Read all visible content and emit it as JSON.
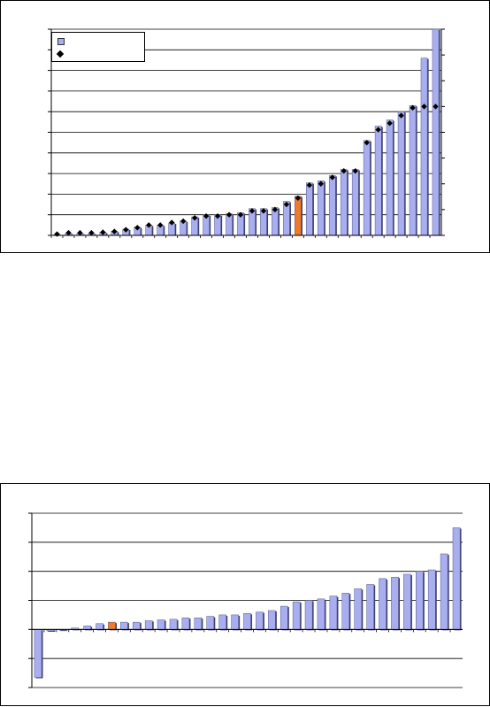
{
  "colors": {
    "bar": "#a9aef0",
    "bar_stroke": "#555a8a",
    "bar_shadow": "#3c3f66",
    "highlight": "#f07a2a",
    "marker": "#000000",
    "gridline": "#000000"
  },
  "legend": {
    "series_bar_label": "",
    "series_marker_label": ""
  },
  "chart_data": [
    {
      "type": "bar",
      "title": "",
      "xlabel": "",
      "ylabel": "",
      "ylim": [
        0,
        10
      ],
      "y2lim": [
        0,
        8
      ],
      "grid": true,
      "legend_placement": "top-left",
      "highlight_index": 21,
      "series": [
        {
          "kind": "bar",
          "values": [
            0.05,
            0.1,
            0.1,
            0.1,
            0.15,
            0.2,
            0.3,
            0.4,
            0.5,
            0.5,
            0.6,
            0.7,
            0.9,
            1.0,
            1.0,
            1.05,
            1.1,
            1.3,
            1.3,
            1.35,
            1.65,
            1.9,
            2.55,
            2.65,
            2.9,
            3.2,
            3.2,
            4.6,
            5.3,
            5.6,
            6.0,
            6.3,
            8.6,
            10.0
          ]
        },
        {
          "kind": "marker",
          "axis": "secondary",
          "values": [
            0.05,
            0.1,
            0.1,
            0.1,
            0.12,
            0.15,
            0.22,
            0.3,
            0.4,
            0.4,
            0.5,
            0.55,
            0.68,
            0.75,
            0.75,
            0.8,
            0.8,
            0.95,
            0.95,
            1.0,
            1.2,
            1.45,
            1.95,
            2.0,
            2.25,
            2.5,
            2.5,
            3.6,
            4.1,
            4.35,
            4.65,
            4.95,
            5.0,
            5.0
          ]
        }
      ]
    },
    {
      "type": "bar",
      "title": "",
      "xlabel": "",
      "ylabel": "",
      "ylim": [
        -2,
        4
      ],
      "grid": true,
      "highlight_index": 6,
      "series": [
        {
          "kind": "bar",
          "values": [
            -1.65,
            -0.05,
            -0.02,
            0.05,
            0.12,
            0.2,
            0.25,
            0.25,
            0.25,
            0.3,
            0.33,
            0.35,
            0.4,
            0.4,
            0.45,
            0.5,
            0.5,
            0.55,
            0.6,
            0.65,
            0.8,
            0.95,
            1.0,
            1.05,
            1.15,
            1.25,
            1.4,
            1.55,
            1.75,
            1.8,
            1.9,
            2.0,
            2.05,
            2.6,
            3.5
          ]
        }
      ]
    }
  ]
}
